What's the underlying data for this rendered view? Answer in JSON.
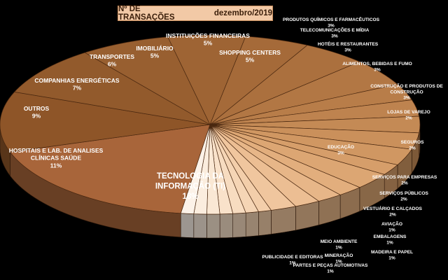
{
  "header": {
    "title": "Nº DE TRANSAÇÕES",
    "period": "dezembro/2019"
  },
  "chart_data": {
    "type": "pie",
    "title": "Nº DE TRANSAÇÕES dezembro/2019",
    "unit": "%",
    "slices": [
      {
        "label": "TECNOLOGIA DA INFORMAÇÃO (TI)",
        "value": 18,
        "display": "18%",
        "color": "#a8653a"
      },
      {
        "label": "HOSPITAIS E LAB. DE ANALISES CLÍNICAS SAÚDE",
        "value": 11,
        "display": "11%",
        "color": "#8e5528"
      },
      {
        "label": "OUTROS",
        "value": 9,
        "display": "9%",
        "color": "#925a2c"
      },
      {
        "label": "COMPANHIAS ENERGÉTICAS",
        "value": 7,
        "display": "7%",
        "color": "#985f30"
      },
      {
        "label": "TRANSPORTES",
        "value": 6,
        "display": "6%",
        "color": "#9e6434"
      },
      {
        "label": "IMOBILIÁRIO",
        "value": 5,
        "display": "5%",
        "color": "#a56a39"
      },
      {
        "label": "INSTITUIÇÕES FINANCEIRAS",
        "value": 5,
        "display": "5%",
        "color": "#ab703e"
      },
      {
        "label": "SHOPPING CENTERS",
        "value": 5,
        "display": "5%",
        "color": "#b27744"
      },
      {
        "label": "PRODUTOS QUÍMICOS E FARMACÊUTICOS",
        "value": 3,
        "display": "3%",
        "color": "#b87d49"
      },
      {
        "label": "TELECOMUNICAÇÕES E MÍDIA",
        "value": 3,
        "display": "3%",
        "color": "#be834f"
      },
      {
        "label": "HOTÉIS E RESTAURANTES",
        "value": 3,
        "display": "3%",
        "color": "#c48a55"
      },
      {
        "label": "ALIMENTOS, BEBIDAS E FUMO",
        "value": 3,
        "display": "3%",
        "color": "#ca905b"
      },
      {
        "label": "CONSTRUÇÃO E PRODUTOS DE CONSTRUÇÃO",
        "value": 3,
        "display": "3%",
        "color": "#d09762"
      },
      {
        "label": "LOJAS DE VAREJO",
        "value": 2,
        "display": "2%",
        "color": "#d69e6a"
      },
      {
        "label": "EDUCAÇÃO",
        "value": 3,
        "display": "3%",
        "color": "#dca673"
      },
      {
        "label": "SEGUROS",
        "value": 2,
        "display": "2%",
        "color": "#e2ae7d"
      },
      {
        "label": "SERVIÇOS PARA EMPRESAS",
        "value": 2,
        "display": "2%",
        "color": "#e7b688"
      },
      {
        "label": "SERVIÇOS PÚBLICOS",
        "value": 2,
        "display": "2%",
        "color": "#ecbe93"
      },
      {
        "label": "VESTUÁRIO E CALÇADOS",
        "value": 2,
        "display": "2%",
        "color": "#f0c69e"
      },
      {
        "label": "AVIAÇÃO",
        "value": 1,
        "display": "1%",
        "color": "#f3ceaa"
      },
      {
        "label": "EMBALAGENS",
        "value": 1,
        "display": "1%",
        "color": "#f5d5b5"
      },
      {
        "label": "MADEIRA E PAPEL",
        "value": 1,
        "display": "1%",
        "color": "#f7dcc0"
      },
      {
        "label": "PARTES E PEÇAS AUTOMOTIVAS",
        "value": 1,
        "display": "1%",
        "color": "#f9e2ca"
      },
      {
        "label": "MINERAÇÃO",
        "value": 1,
        "display": "1%",
        "color": "#fae8d4"
      },
      {
        "label": "MEIO AMBIENTE",
        "value": 1,
        "display": "1%",
        "color": "#fbedde"
      },
      {
        "label": "PUBLICIDADE E EDITORAS",
        "value": 1,
        "display": "1%",
        "color": "#fcf2e8"
      }
    ]
  }
}
